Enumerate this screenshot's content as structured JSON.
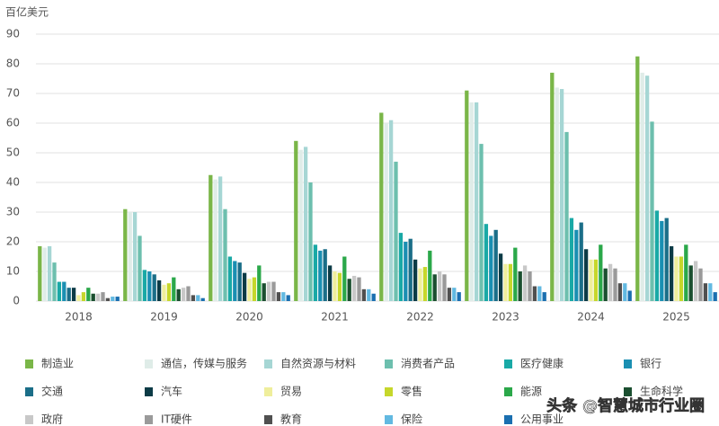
{
  "chart_data": {
    "type": "bar",
    "y_axis_label": "百亿美元",
    "categories": [
      "2018",
      "2019",
      "2020",
      "2021",
      "2022",
      "2023",
      "2024",
      "2025"
    ],
    "ylim": [
      0,
      90
    ],
    "yticks": [
      0,
      10,
      20,
      30,
      40,
      50,
      60,
      70,
      80,
      90
    ],
    "grid": true,
    "series": [
      {
        "name": "制造业",
        "color": "#7ab648",
        "values": [
          18.5,
          31,
          42.5,
          54,
          63.5,
          71,
          77,
          82.5
        ]
      },
      {
        "name": "通信，传媒与服务",
        "color": "#dfece8",
        "values": [
          18,
          30,
          41,
          51,
          60,
          67,
          72,
          77
        ]
      },
      {
        "name": "自然资源与材料",
        "color": "#a6d6d4",
        "values": [
          18.5,
          30,
          42,
          52,
          61,
          67,
          71.5,
          76
        ]
      },
      {
        "name": "消费者产品",
        "color": "#6dbfae",
        "values": [
          13,
          22,
          31,
          40,
          47,
          53,
          57,
          60.5
        ]
      },
      {
        "name": "医疗健康",
        "color": "#19a9a6",
        "values": [
          6.5,
          10.5,
          15,
          19,
          23,
          26,
          28,
          30.5
        ]
      },
      {
        "name": "银行",
        "color": "#1a8fb2",
        "values": [
          6.5,
          10,
          13.5,
          17,
          20,
          22,
          24,
          27
        ]
      },
      {
        "name": "交通",
        "color": "#1b6e88",
        "values": [
          4.5,
          9,
          13,
          17.5,
          21,
          24,
          26.5,
          28
        ]
      },
      {
        "name": "汽车",
        "color": "#0c3b46",
        "values": [
          4.5,
          7,
          9.5,
          12,
          14,
          16,
          17.5,
          18.5
        ]
      },
      {
        "name": "贸易",
        "color": "#efee9c",
        "values": [
          2,
          5.5,
          7.5,
          10,
          11,
          12.5,
          14,
          15
        ]
      },
      {
        "name": "零售",
        "color": "#c6d72b",
        "values": [
          3,
          6,
          8,
          9.5,
          11.5,
          12.5,
          14,
          15
        ]
      },
      {
        "name": "能源",
        "color": "#2ba84a",
        "values": [
          4.5,
          8,
          12,
          15,
          17,
          18,
          19,
          19
        ]
      },
      {
        "name": "生命科学",
        "color": "#1b4f30",
        "values": [
          2.5,
          4,
          6,
          7.5,
          9,
          10,
          11,
          12
        ]
      },
      {
        "name": "政府",
        "color": "#c8c8c8",
        "values": [
          2.5,
          4.5,
          6.5,
          8.5,
          10,
          12,
          12.5,
          13.5
        ]
      },
      {
        "name": "IT硬件",
        "color": "#9a9a9a",
        "values": [
          3,
          5,
          6.5,
          8,
          9,
          10,
          11,
          11
        ]
      },
      {
        "name": "教育",
        "color": "#505050",
        "values": [
          1,
          2,
          3,
          4,
          4.5,
          5,
          6,
          6
        ]
      },
      {
        "name": "保险",
        "color": "#62b9e1",
        "values": [
          1.5,
          2,
          3,
          4,
          4.5,
          5,
          6,
          6
        ]
      },
      {
        "name": "公用事业",
        "color": "#1a6fb0",
        "values": [
          1.5,
          1,
          2,
          2.5,
          3,
          3,
          3.5,
          3
        ]
      }
    ],
    "watermark": "头条 @智慧城市行业圈"
  }
}
